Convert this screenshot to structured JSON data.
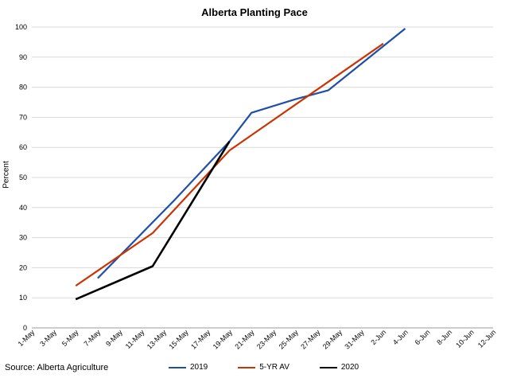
{
  "chart_data": {
    "type": "line",
    "title": "Alberta Planting Pace",
    "xlabel": "",
    "ylabel": "Percent",
    "ylim": [
      0,
      100
    ],
    "yticks": [
      0,
      10,
      20,
      30,
      40,
      50,
      60,
      70,
      80,
      90,
      100
    ],
    "x_tick_labels": [
      "1-May",
      "3-May",
      "5-May",
      "7-May",
      "9-May",
      "11-May",
      "13-May",
      "15-May",
      "17-May",
      "19-May",
      "21-May",
      "23-May",
      "25-May",
      "27-May",
      "29-May",
      "31-May",
      "2-Jun",
      "4-Jun",
      "6-Jun",
      "8-Jun",
      "10-Jun",
      "12-Jun"
    ],
    "grid": "horizontal",
    "legend_placement": "bottom",
    "source": "Source: Alberta Agriculture",
    "series": [
      {
        "name": "2019",
        "color": "#1f4fa8",
        "width": 2.2,
        "points": [
          [
            "7-May",
            16.5
          ],
          [
            "14-May",
            42.5
          ],
          [
            "19-May",
            62
          ],
          [
            "21-May",
            71.5
          ],
          [
            "25-May",
            76
          ],
          [
            "28-May",
            79
          ],
          [
            "4-Jun",
            99.5
          ]
        ]
      },
      {
        "name": "5-YR AV",
        "color": "#cc3300",
        "width": 2.2,
        "points": [
          [
            "5-May",
            14
          ],
          [
            "12-May",
            31.5
          ],
          [
            "19-May",
            59
          ],
          [
            "2-Jun",
            94.5
          ]
        ]
      },
      {
        "name": "2020",
        "color": "#000000",
        "width": 2.6,
        "points": [
          [
            "5-May",
            9.5
          ],
          [
            "12-May",
            20.5
          ],
          [
            "19-May",
            62
          ]
        ]
      }
    ]
  }
}
